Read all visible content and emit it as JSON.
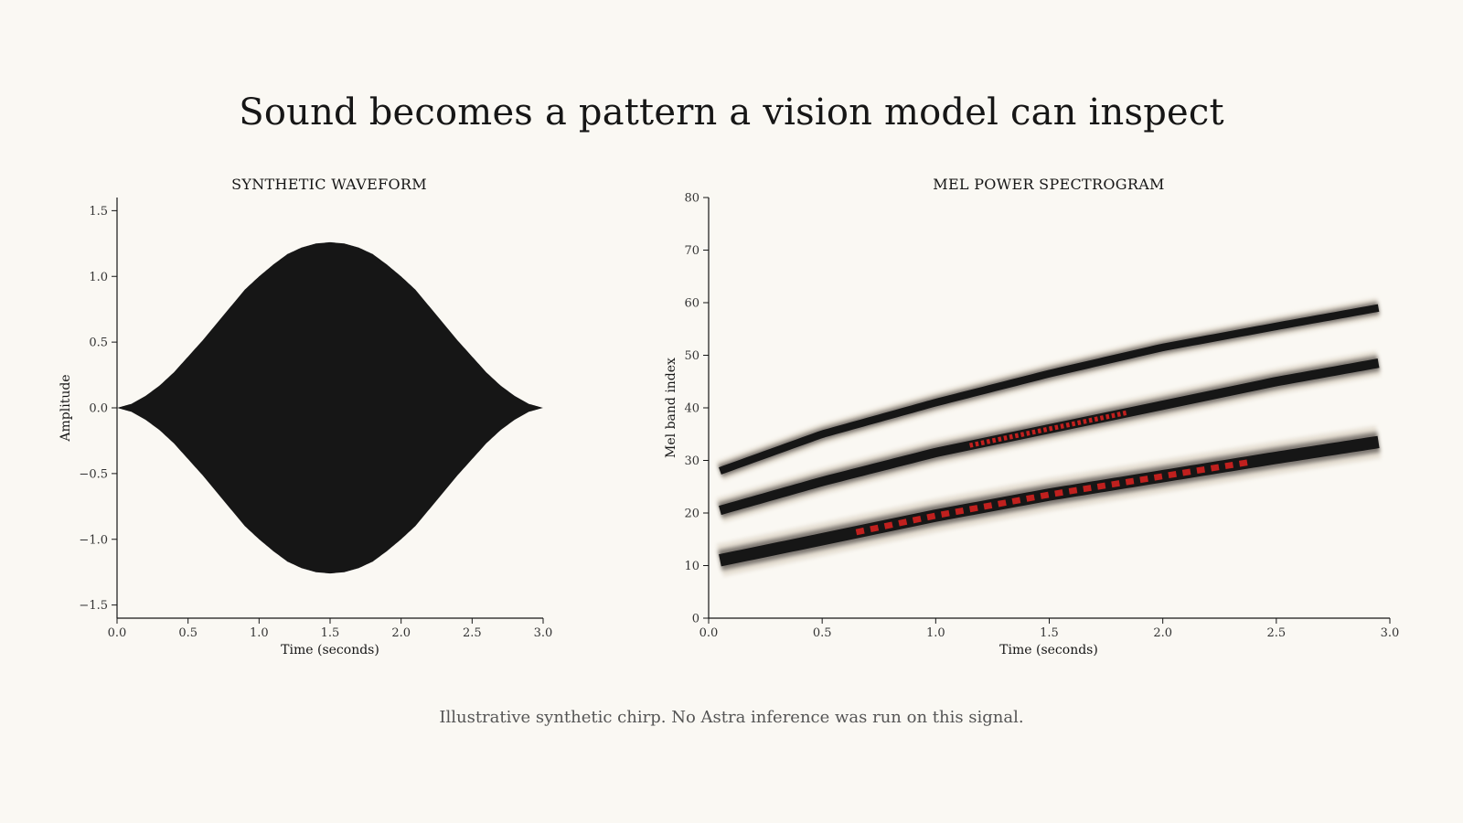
{
  "page": {
    "title": "Sound becomes a pattern a vision model can inspect",
    "caption": "Illustrative synthetic chirp. No Astra inference was run on this signal."
  },
  "colors": {
    "background": "#faf8f3",
    "ink": "#161616",
    "accent": "#c0201e",
    "caption": "#555555"
  },
  "chart_data": [
    {
      "type": "area",
      "title": "SYNTHETIC WAVEFORM",
      "xlabel": "Time (seconds)",
      "ylabel": "Amplitude",
      "xlim": [
        0,
        3
      ],
      "ylim": [
        -1.6,
        1.6
      ],
      "xticks": [
        0.0,
        0.5,
        1.0,
        1.5,
        2.0,
        2.5,
        3.0
      ],
      "xtick_labels": [
        "0.0",
        "0.5",
        "1.0",
        "1.5",
        "2.0",
        "2.5",
        "3.0"
      ],
      "yticks": [
        1.5,
        1.0,
        0.5,
        0.0,
        -0.5,
        -1.0,
        -1.5
      ],
      "ytick_labels": [
        "1.5",
        "1.0",
        "0.5",
        "0.0",
        "−0.5",
        "−1.0",
        "−1.5"
      ],
      "grid": false,
      "envelope": {
        "x": [
          0.0,
          0.1,
          0.2,
          0.3,
          0.4,
          0.5,
          0.6,
          0.7,
          0.8,
          0.9,
          1.0,
          1.1,
          1.2,
          1.3,
          1.4,
          1.5,
          1.6,
          1.7,
          1.8,
          1.9,
          2.0,
          2.1,
          2.2,
          2.3,
          2.4,
          2.5,
          2.6,
          2.7,
          2.8,
          2.9,
          3.0
        ],
        "upper": [
          0.0,
          0.03,
          0.09,
          0.17,
          0.27,
          0.39,
          0.51,
          0.64,
          0.77,
          0.9,
          1.0,
          1.09,
          1.17,
          1.22,
          1.25,
          1.26,
          1.25,
          1.22,
          1.17,
          1.09,
          1.0,
          0.9,
          0.77,
          0.64,
          0.51,
          0.39,
          0.27,
          0.17,
          0.09,
          0.03,
          0.0
        ]
      }
    },
    {
      "type": "heatmap",
      "title": "MEL POWER SPECTROGRAM",
      "xlabel": "Time (seconds)",
      "ylabel": "Mel band index",
      "xlim": [
        0,
        3
      ],
      "ylim": [
        0,
        80
      ],
      "xticks": [
        0.0,
        0.5,
        1.0,
        1.5,
        2.0,
        2.5,
        3.0
      ],
      "xtick_labels": [
        "0.0",
        "0.5",
        "1.0",
        "1.5",
        "2.0",
        "2.5",
        "3.0"
      ],
      "yticks": [
        0,
        10,
        20,
        30,
        40,
        50,
        60,
        70,
        80
      ],
      "ytick_labels": [
        "0",
        "10",
        "20",
        "30",
        "40",
        "50",
        "60",
        "70",
        "80"
      ],
      "grid": false,
      "bands": [
        {
          "x": [
            0.05,
            0.5,
            1.0,
            1.5,
            2.0,
            2.5,
            2.95
          ],
          "y": [
            11,
            15,
            19.5,
            23.5,
            27,
            30.5,
            33.5
          ],
          "width": 2.6,
          "hot": [
            0.65,
            2.4
          ]
        },
        {
          "x": [
            0.05,
            0.5,
            1.0,
            1.5,
            2.0,
            2.5,
            2.95
          ],
          "y": [
            20.5,
            26,
            31.5,
            36,
            40.5,
            45,
            48.5
          ],
          "width": 2.0,
          "hot": [
            1.15,
            1.85
          ]
        },
        {
          "x": [
            0.05,
            0.5,
            1.0,
            1.5,
            2.0,
            2.5,
            2.95
          ],
          "y": [
            28,
            35,
            41,
            46.5,
            51.5,
            55.5,
            59
          ],
          "width": 1.6,
          "hot": null
        }
      ]
    }
  ]
}
